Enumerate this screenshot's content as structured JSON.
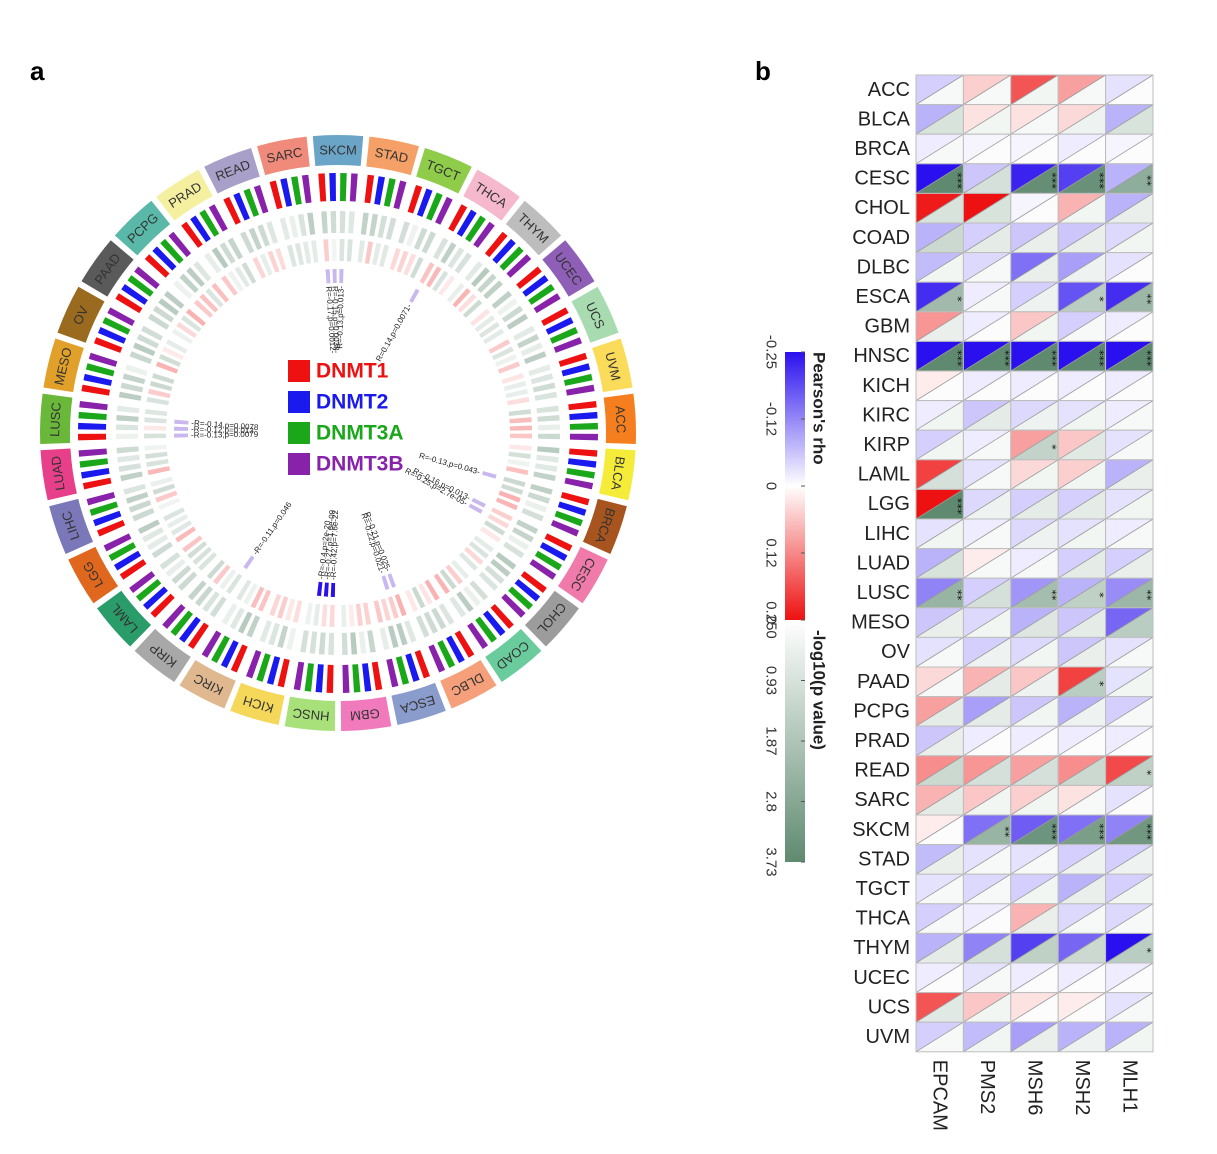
{
  "panel_a_label": "a",
  "panel_b_label": "b",
  "colors": {
    "DNMT1": "#ee1111",
    "DNMT2": "#1a1aee",
    "DNMT3A": "#1aa81a",
    "DNMT3B": "#8822aa",
    "rho_neg": "#2a10ee",
    "rho_pos": "#ee1111",
    "p_high": "#5f8a70"
  },
  "chart_data": [
    {
      "type": "heatmap",
      "layout": "circos",
      "cancer_types": [
        "SKCM",
        "STAD",
        "TGCT",
        "THCA",
        "THYM",
        "UCEC",
        "UCS",
        "UVM",
        "ACC",
        "BLCA",
        "BRCA",
        "CESC",
        "CHOL",
        "COAD",
        "DLBC",
        "ESCA",
        "GBM",
        "HNSC",
        "KICH",
        "KIRC",
        "KIRP",
        "LAML",
        "LGG",
        "LIHC",
        "LUAD",
        "LUSC",
        "MESO",
        "OV",
        "PAAD",
        "PCPG",
        "PRAD",
        "READ",
        "SARC"
      ],
      "cancer_colors": [
        "#6aa5c8",
        "#f5a066",
        "#8fcc4a",
        "#f5b8cc",
        "#bdbdbd",
        "#8f5fb8",
        "#a8dcb0",
        "#fadc5a",
        "#f57f1e",
        "#f5ec3a",
        "#a8541e",
        "#f07aaa",
        "#9c9c9c",
        "#6acc9c",
        "#f5a07a",
        "#8a9ccc",
        "#f07abc",
        "#a8e07a",
        "#f5d85a",
        "#e0b890",
        "#a8a8a8",
        "#2a9c6a",
        "#e0681e",
        "#7a78b8",
        "#e83f8a",
        "#6ab83a",
        "#e0a02a",
        "#9a6a1e",
        "#5a5a5a",
        "#5ab8a8",
        "#f5f0a0",
        "#a8a0c8",
        "#f08a7a"
      ],
      "legend": [
        "DNMT1",
        "DNMT2",
        "DNMT3A",
        "DNMT3B"
      ],
      "rings": [
        "Pearson's rho",
        "-log10(p value)"
      ],
      "annotations": [
        {
          "cancer": "SKCM",
          "label": "R=-0.17,p=0.0012-"
        },
        {
          "cancer": "SKCM",
          "label": "R=-0.15,p=0.0038-"
        },
        {
          "cancer": "SKCM",
          "label": "R=-0.13,p=0.013-"
        },
        {
          "cancer": "THCA",
          "label": "R=0.14,p=0.0071-"
        },
        {
          "cancer": "BRCA",
          "label": "R=-0.13,p=0.043-"
        },
        {
          "cancer": "CESC",
          "label": "R=-0.16,p=0.013-"
        },
        {
          "cancer": "CESC",
          "label": "R=-0.25,p=2.7e-05-"
        },
        {
          "cancer": "ESCA",
          "label": "R=-0.21,p=0.025-"
        },
        {
          "cancer": "ESCA",
          "label": "R=-0.22,p=0.021-"
        },
        {
          "cancer": "HNSC",
          "label": "-R=-0.42,p=7.6e-22"
        },
        {
          "cancer": "HNSC",
          "label": "-R=-0.27,p=1.6e-09"
        },
        {
          "cancer": "HNSC",
          "label": "-R=-0.4,p=2e-20"
        },
        {
          "cancer": "KIRP",
          "label": "-R=-0.11,p=0.046"
        },
        {
          "cancer": "LUSC",
          "label": "-R=-0.13,p=0.0079"
        },
        {
          "cancer": "LUSC",
          "label": "-R=-0.12,p=0.013"
        },
        {
          "cancer": "LUSC",
          "label": "-R=-0.14,p=0.0078"
        }
      ]
    },
    {
      "type": "heatmap",
      "layout": "split-cell",
      "rows": [
        "ACC",
        "BLCA",
        "BRCA",
        "CESC",
        "CHOL",
        "COAD",
        "DLBC",
        "ESCA",
        "GBM",
        "HNSC",
        "KICH",
        "KIRC",
        "KIRP",
        "LAML",
        "LGG",
        "LIHC",
        "LUAD",
        "LUSC",
        "MESO",
        "OV",
        "PAAD",
        "PCPG",
        "PRAD",
        "READ",
        "SARC",
        "SKCM",
        "STAD",
        "TGCT",
        "THCA",
        "THYM",
        "UCEC",
        "UCS",
        "UVM"
      ],
      "columns": [
        "EPCAM",
        "PMS2",
        "MSH6",
        "MSH2",
        "MLH1"
      ],
      "rho": [
        [
          -0.05,
          0.05,
          0.18,
          0.1,
          -0.03
        ],
        [
          -0.08,
          0.03,
          0.03,
          0.04,
          -0.08
        ],
        [
          -0.02,
          -0.01,
          -0.01,
          -0.02,
          -0.01
        ],
        [
          -0.25,
          -0.06,
          -0.23,
          -0.2,
          -0.08
        ],
        [
          0.24,
          0.25,
          -0.01,
          0.08,
          -0.08
        ],
        [
          -0.08,
          -0.05,
          -0.06,
          -0.06,
          -0.04
        ],
        [
          -0.07,
          -0.04,
          -0.15,
          -0.1,
          -0.03
        ],
        [
          -0.22,
          -0.02,
          -0.05,
          -0.18,
          -0.22
        ],
        [
          0.11,
          -0.02,
          0.06,
          -0.05,
          -0.02
        ],
        [
          -0.25,
          -0.25,
          -0.25,
          -0.25,
          -0.25
        ],
        [
          0.02,
          -0.02,
          -0.02,
          -0.02,
          -0.02
        ],
        [
          -0.02,
          -0.06,
          -0.04,
          -0.03,
          -0.02
        ],
        [
          -0.05,
          -0.02,
          0.1,
          0.06,
          -0.03
        ],
        [
          0.2,
          -0.03,
          0.04,
          0.05,
          -0.08
        ],
        [
          0.25,
          -0.04,
          -0.05,
          -0.05,
          -0.03
        ],
        [
          -0.03,
          -0.02,
          -0.04,
          -0.03,
          -0.02
        ],
        [
          -0.08,
          0.02,
          -0.02,
          -0.05,
          -0.05
        ],
        [
          -0.13,
          -0.05,
          -0.11,
          -0.08,
          -0.12
        ],
        [
          -0.06,
          -0.04,
          -0.08,
          -0.06,
          -0.16
        ],
        [
          -0.03,
          -0.05,
          -0.04,
          -0.06,
          -0.03
        ],
        [
          0.04,
          0.08,
          0.06,
          0.2,
          -0.03
        ],
        [
          0.1,
          -0.1,
          -0.06,
          -0.08,
          -0.05
        ],
        [
          -0.06,
          -0.02,
          -0.02,
          -0.02,
          -0.02
        ],
        [
          0.12,
          0.11,
          0.1,
          0.12,
          0.19
        ],
        [
          0.08,
          0.06,
          0.05,
          0.03,
          -0.03
        ],
        [
          0.02,
          -0.15,
          -0.17,
          -0.15,
          -0.13
        ],
        [
          -0.07,
          -0.03,
          -0.03,
          -0.05,
          -0.05
        ],
        [
          -0.03,
          -0.04,
          -0.05,
          -0.08,
          -0.05
        ],
        [
          -0.05,
          -0.02,
          0.08,
          -0.04,
          -0.04
        ],
        [
          -0.08,
          -0.13,
          -0.2,
          -0.16,
          -0.25
        ],
        [
          -0.02,
          -0.03,
          -0.02,
          -0.02,
          -0.02
        ],
        [
          0.18,
          0.06,
          0.03,
          0.02,
          -0.03
        ],
        [
          -0.05,
          -0.07,
          -0.1,
          -0.08,
          -0.08
        ]
      ],
      "neg_log10_p": [
        [
          0.2,
          0.2,
          0.3,
          0.2,
          0.1
        ],
        [
          0.9,
          0.3,
          0.2,
          0.4,
          0.9
        ],
        [
          0.2,
          0.1,
          0.1,
          0.1,
          0.1
        ],
        [
          3.73,
          1.0,
          3.6,
          3.5,
          2.6
        ],
        [
          0.9,
          0.9,
          0.1,
          0.3,
          0.5
        ],
        [
          1.2,
          0.6,
          0.5,
          0.5,
          0.3
        ],
        [
          0.3,
          0.2,
          0.5,
          0.4,
          0.1
        ],
        [
          2.2,
          0.2,
          0.4,
          1.6,
          2.3
        ],
        [
          0.5,
          0.1,
          0.3,
          0.2,
          0.1
        ],
        [
          3.73,
          3.73,
          3.73,
          3.73,
          3.73
        ],
        [
          0.1,
          0.1,
          0.1,
          0.1,
          0.1
        ],
        [
          0.3,
          0.6,
          0.4,
          0.3,
          0.2
        ],
        [
          0.3,
          0.2,
          1.4,
          0.7,
          0.2
        ],
        [
          1.0,
          0.2,
          0.3,
          0.3,
          0.5
        ],
        [
          3.73,
          0.4,
          0.6,
          0.6,
          0.3
        ],
        [
          0.3,
          0.2,
          0.4,
          0.3,
          0.2
        ],
        [
          0.9,
          0.2,
          0.2,
          0.6,
          0.5
        ],
        [
          2.4,
          1.0,
          2.1,
          1.5,
          2.3
        ],
        [
          0.5,
          0.3,
          0.8,
          0.6,
          1.6
        ],
        [
          0.2,
          0.4,
          0.3,
          0.5,
          0.2
        ],
        [
          0.2,
          0.6,
          0.4,
          1.6,
          0.3
        ],
        [
          0.6,
          0.6,
          0.3,
          0.4,
          0.2
        ],
        [
          0.5,
          0.1,
          0.1,
          0.1,
          0.1
        ],
        [
          1.2,
          1.0,
          1.0,
          1.2,
          1.5
        ],
        [
          0.6,
          0.3,
          0.3,
          0.2,
          0.1
        ],
        [
          0.1,
          2.4,
          3.4,
          3.1,
          3.3
        ],
        [
          0.5,
          0.2,
          0.2,
          0.4,
          0.4
        ],
        [
          0.2,
          0.2,
          0.3,
          0.5,
          0.3
        ],
        [
          0.2,
          0.1,
          0.5,
          0.2,
          0.2
        ],
        [
          0.6,
          1.0,
          1.5,
          1.2,
          1.6
        ],
        [
          0.1,
          0.2,
          0.1,
          0.1,
          0.1
        ],
        [
          0.7,
          0.3,
          0.1,
          0.1,
          0.2
        ],
        [
          0.2,
          0.3,
          0.5,
          0.4,
          0.3
        ]
      ],
      "significance": [
        [
          "",
          "",
          "",
          "",
          ""
        ],
        [
          "",
          "",
          "",
          "",
          ""
        ],
        [
          "",
          "",
          "",
          "",
          ""
        ],
        [
          "***",
          "",
          "***",
          "***",
          "**"
        ],
        [
          "",
          "",
          "",
          "",
          ""
        ],
        [
          "",
          "",
          "",
          "",
          ""
        ],
        [
          "",
          "",
          "",
          "",
          ""
        ],
        [
          "*",
          "",
          "",
          "*",
          "**"
        ],
        [
          "",
          "",
          "",
          "",
          ""
        ],
        [
          "***",
          "***",
          "***",
          "***",
          "***"
        ],
        [
          "",
          "",
          "",
          "",
          ""
        ],
        [
          "",
          "",
          "",
          "",
          ""
        ],
        [
          "",
          "",
          "*",
          "",
          ""
        ],
        [
          "",
          "",
          "",
          "",
          ""
        ],
        [
          "***",
          "",
          "",
          "",
          ""
        ],
        [
          "",
          "",
          "",
          "",
          ""
        ],
        [
          "",
          "",
          "",
          "",
          ""
        ],
        [
          "**",
          "",
          "**",
          "*",
          "**"
        ],
        [
          "",
          "",
          "",
          "",
          ""
        ],
        [
          "",
          "",
          "",
          "",
          ""
        ],
        [
          "",
          "",
          "",
          "*",
          ""
        ],
        [
          "",
          "",
          "",
          "",
          ""
        ],
        [
          "",
          "",
          "",
          "",
          ""
        ],
        [
          "",
          "",
          "",
          "",
          "*"
        ],
        [
          "",
          "",
          "",
          "",
          ""
        ],
        [
          "",
          "**",
          "***",
          "***",
          "***"
        ],
        [
          "",
          "",
          "",
          "",
          ""
        ],
        [
          "",
          "",
          "",
          "",
          ""
        ],
        [
          "",
          "",
          "",
          "",
          ""
        ],
        [
          "",
          "",
          "",
          "",
          "*"
        ],
        [
          "",
          "",
          "",
          "",
          ""
        ],
        [
          "",
          "",
          "",
          "",
          ""
        ],
        [
          "",
          "",
          "",
          "",
          ""
        ]
      ],
      "colorbar_rho": {
        "title": "Pearson's rho",
        "ticks": [
          "-0.25",
          "-0.12",
          "0",
          "0.12",
          "0.250"
        ]
      },
      "colorbar_p": {
        "title": "-log10(p value)",
        "ticks": [
          "0",
          "0.93",
          "1.87",
          "2.8",
          "3.73"
        ]
      }
    }
  ]
}
